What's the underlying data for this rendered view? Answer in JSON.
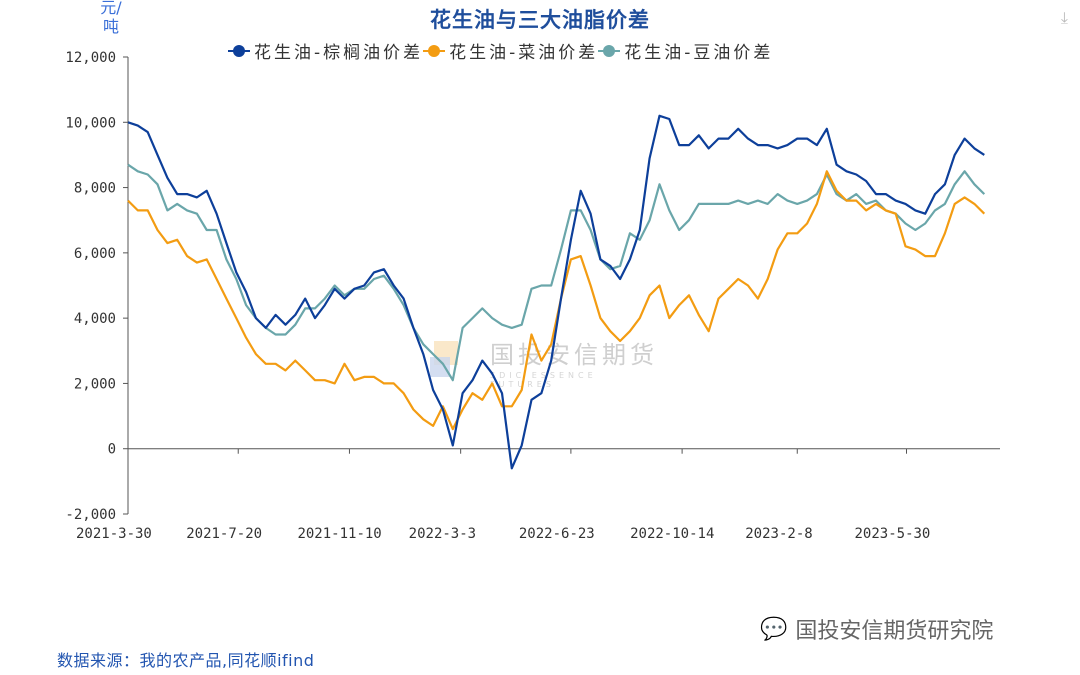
{
  "download_icon": "download-icon",
  "footer": {
    "source": "数据来源：我的农产品,同花顺ifind",
    "wechat_account": "国投安信期货研究院",
    "wechat_icon": "wechat-icon"
  },
  "watermark": {
    "zh": "国投安信期货",
    "en": "SDIC ESSENCE FUTURES"
  },
  "chart_data": {
    "type": "line",
    "title": "花生油与三大油脂价差",
    "ylabel": "元/吨",
    "xlabel": "",
    "ylim": [
      -2000,
      12000
    ],
    "yticks": [
      -2000,
      0,
      2000,
      4000,
      6000,
      8000,
      10000,
      12000
    ],
    "ytick_labels": [
      "-2,000",
      "0",
      "2,000",
      "4,000",
      "6,000",
      "8,000",
      "10,000",
      "12,000"
    ],
    "xlim": [
      "2021-03-30",
      "2023-09-02"
    ],
    "xticks": [
      "2021-03-30",
      "2021-07-20",
      "2021-11-10",
      "2022-03-03",
      "2022-06-23",
      "2022-10-14",
      "2023-02-08",
      "2023-05-30"
    ],
    "xtick_labels": [
      "2021-3-30",
      "2021-7-20",
      "2021-11-10",
      "2022-3-3",
      "2022-6-23",
      "2022-10-14",
      "2023-2-8",
      "2023-5-30"
    ],
    "grid": false,
    "legend_position": "top",
    "x": [
      "2021-03-30",
      "2021-04-09",
      "2021-04-19",
      "2021-04-29",
      "2021-05-09",
      "2021-05-19",
      "2021-05-29",
      "2021-06-08",
      "2021-06-18",
      "2021-06-28",
      "2021-07-08",
      "2021-07-18",
      "2021-07-28",
      "2021-08-07",
      "2021-08-17",
      "2021-08-27",
      "2021-09-06",
      "2021-09-16",
      "2021-09-26",
      "2021-10-06",
      "2021-10-16",
      "2021-10-26",
      "2021-11-05",
      "2021-11-15",
      "2021-11-25",
      "2021-12-05",
      "2021-12-15",
      "2021-12-25",
      "2022-01-04",
      "2022-01-14",
      "2022-01-24",
      "2022-02-03",
      "2022-02-13",
      "2022-02-23",
      "2022-03-05",
      "2022-03-15",
      "2022-03-25",
      "2022-04-04",
      "2022-04-14",
      "2022-04-24",
      "2022-05-04",
      "2022-05-14",
      "2022-05-24",
      "2022-06-03",
      "2022-06-13",
      "2022-06-23",
      "2022-07-03",
      "2022-07-13",
      "2022-07-23",
      "2022-08-02",
      "2022-08-12",
      "2022-08-22",
      "2022-09-01",
      "2022-09-11",
      "2022-09-21",
      "2022-10-01",
      "2022-10-11",
      "2022-10-21",
      "2022-10-31",
      "2022-11-10",
      "2022-11-20",
      "2022-11-30",
      "2022-12-10",
      "2022-12-20",
      "2022-12-30",
      "2023-01-09",
      "2023-01-19",
      "2023-01-29",
      "2023-02-08",
      "2023-02-18",
      "2023-02-28",
      "2023-03-10",
      "2023-03-20",
      "2023-03-30",
      "2023-04-09",
      "2023-04-19",
      "2023-04-29",
      "2023-05-09",
      "2023-05-19",
      "2023-05-29",
      "2023-06-08",
      "2023-06-18",
      "2023-06-28",
      "2023-07-08",
      "2023-07-18",
      "2023-07-28",
      "2023-08-07",
      "2023-08-17"
    ],
    "series": [
      {
        "name": "花生油-棕榈油价差",
        "color": "#0d3f9a",
        "values": [
          10000,
          9900,
          9700,
          9000,
          8300,
          7800,
          7800,
          7700,
          7900,
          7200,
          6300,
          5400,
          4800,
          4000,
          3700,
          4100,
          3800,
          4100,
          4600,
          4000,
          4400,
          4900,
          4600,
          4900,
          5000,
          5400,
          5500,
          5000,
          4600,
          3700,
          2900,
          1800,
          1200,
          100,
          1700,
          2100,
          2700,
          2300,
          1700,
          -600,
          100,
          1500,
          1700,
          2700,
          4600,
          6400,
          7900,
          7200,
          5800,
          5600,
          5200,
          5800,
          6700,
          8900,
          10200,
          10100,
          9300,
          9300,
          9600,
          9200,
          9500,
          9500,
          9800,
          9500,
          9300,
          9300,
          9200,
          9300,
          9500,
          9500,
          9300,
          9800,
          8700,
          8500,
          8400,
          8200,
          7800,
          7800,
          7600,
          7500,
          7300,
          7200,
          7800,
          8100,
          9000,
          9500,
          9200,
          9000
        ]
      },
      {
        "name": "花生油-菜油价差",
        "color": "#f39c12",
        "values": [
          7600,
          7300,
          7300,
          6700,
          6300,
          6400,
          5900,
          5700,
          5800,
          5200,
          4600,
          4000,
          3400,
          2900,
          2600,
          2600,
          2400,
          2700,
          2400,
          2100,
          2100,
          2000,
          2600,
          2100,
          2200,
          2200,
          2000,
          2000,
          1700,
          1200,
          900,
          700,
          1300,
          600,
          1200,
          1700,
          1500,
          2000,
          1300,
          1300,
          1800,
          3500,
          2700,
          3200,
          4600,
          5800,
          5900,
          5000,
          4000,
          3600,
          3300,
          3600,
          4000,
          4700,
          5000,
          4000,
          4400,
          4700,
          4100,
          3600,
          4600,
          4900,
          5200,
          5000,
          4600,
          5200,
          6100,
          6600,
          6600,
          6900,
          7500,
          8500,
          7900,
          7600,
          7600,
          7300,
          7500,
          7300,
          7200,
          6200,
          6100,
          5900,
          5900,
          6600,
          7500,
          7700,
          7500,
          7200
        ]
      },
      {
        "name": "花生油-豆油价差",
        "color": "#6aa6aa",
        "values": [
          8700,
          8500,
          8400,
          8100,
          7300,
          7500,
          7300,
          7200,
          6700,
          6700,
          5800,
          5200,
          4400,
          4000,
          3700,
          3500,
          3500,
          3800,
          4300,
          4300,
          4600,
          5000,
          4700,
          4900,
          4900,
          5200,
          5300,
          4900,
          4400,
          3700,
          3200,
          2900,
          2600,
          2100,
          3700,
          4000,
          4300,
          4000,
          3800,
          3700,
          3800,
          4900,
          5000,
          5000,
          6100,
          7300,
          7300,
          6700,
          5800,
          5500,
          5600,
          6600,
          6400,
          7000,
          8100,
          7300,
          6700,
          7000,
          7500,
          7500,
          7500,
          7500,
          7600,
          7500,
          7600,
          7500,
          7800,
          7600,
          7500,
          7600,
          7800,
          8400,
          7800,
          7600,
          7800,
          7500,
          7600,
          7300,
          7200,
          6900,
          6700,
          6900,
          7300,
          7500,
          8100,
          8500,
          8100,
          7800
        ]
      }
    ]
  }
}
